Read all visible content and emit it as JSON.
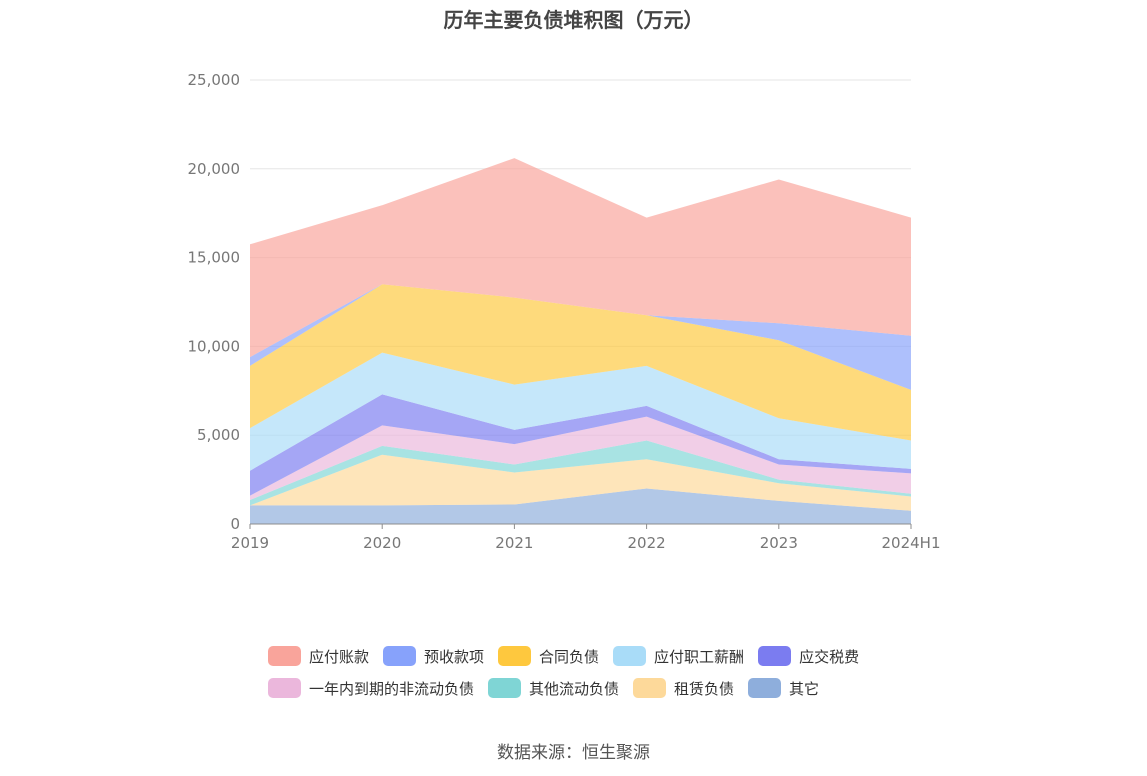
{
  "chart_data": {
    "type": "area",
    "stacked": true,
    "title": "历年主要负债堆积图（万元）",
    "categories": [
      "2019",
      "2020",
      "2021",
      "2022",
      "2023",
      "2024H1"
    ],
    "ylim": [
      0,
      25000
    ],
    "yticks": [
      "0",
      "5,000",
      "10,000",
      "15,000",
      "20,000",
      "25,000"
    ],
    "grid": true,
    "legend_position": "bottom",
    "series": [
      {
        "name": "其它",
        "color": "#8eaedc",
        "values": [
          1050,
          1050,
          1100,
          2000,
          1300,
          750
        ]
      },
      {
        "name": "租赁负债",
        "color": "#fdd99a",
        "values": [
          0,
          2850,
          1800,
          1650,
          1000,
          800
        ]
      },
      {
        "name": "其他流动负债",
        "color": "#7fd5d5",
        "values": [
          300,
          500,
          450,
          1050,
          200,
          150
        ]
      },
      {
        "name": "一年内到期的非流动负债",
        "color": "#ebb7dc",
        "values": [
          250,
          1150,
          1150,
          1350,
          850,
          1150
        ]
      },
      {
        "name": "应交税费",
        "color": "#7b7cf0",
        "values": [
          1400,
          1750,
          800,
          600,
          300,
          250
        ]
      },
      {
        "name": "应付职工薪酬",
        "color": "#a9dcf8",
        "values": [
          2400,
          2350,
          2550,
          2250,
          2300,
          1600
        ]
      },
      {
        "name": "合同负债",
        "color": "#fec83e",
        "values": [
          3500,
          3850,
          4900,
          2850,
          4400,
          2850
        ]
      },
      {
        "name": "预收款项",
        "color": "#87a2fb",
        "values": [
          500,
          0,
          0,
          0,
          950,
          3050
        ]
      },
      {
        "name": "应付账款",
        "color": "#f9a49b",
        "values": [
          6350,
          4450,
          7850,
          5500,
          8100,
          6650
        ]
      }
    ]
  },
  "legend": [
    {
      "label": "应付账款",
      "color": "#f9a49b"
    },
    {
      "label": "预收款项",
      "color": "#87a2fb"
    },
    {
      "label": "合同负债",
      "color": "#fec83e"
    },
    {
      "label": "应付职工薪酬",
      "color": "#a9dcf8"
    },
    {
      "label": "应交税费",
      "color": "#7b7cf0"
    },
    {
      "label": "一年内到期的非流动负债",
      "color": "#ebb7dc"
    },
    {
      "label": "其他流动负债",
      "color": "#7fd5d5"
    },
    {
      "label": "租赁负债",
      "color": "#fdd99a"
    },
    {
      "label": "其它",
      "color": "#8eaedc"
    }
  ],
  "source": "数据来源：恒生聚源"
}
